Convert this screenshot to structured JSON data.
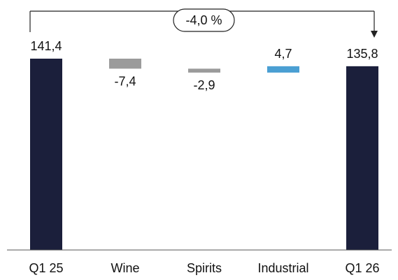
{
  "chart_data": {
    "type": "waterfall",
    "categories": [
      "Q1 25",
      "Wine",
      "Spirits",
      "Industrial",
      "Q1 26"
    ],
    "values": [
      141.4,
      -7.4,
      -2.9,
      4.7,
      135.8
    ],
    "data_labels": [
      "141,4",
      "-7,4",
      "-2,9",
      "4,7",
      "135,8"
    ],
    "bar_kinds": [
      "total",
      "delta",
      "delta",
      "delta",
      "total"
    ],
    "change_label": "-4,0 %",
    "title": "",
    "xlabel": "",
    "ylabel": "",
    "grid": false,
    "colors": {
      "total": "#1b1f3b",
      "decrease": "#9b9b9b",
      "increase": "#4a9fd3",
      "text": "#111111",
      "axis": "#555555",
      "bracket": "#222222"
    }
  }
}
